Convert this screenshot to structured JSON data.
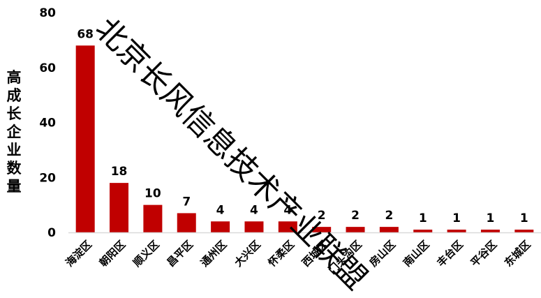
{
  "chart_data": {
    "type": "bar",
    "title": "",
    "xlabel": "",
    "ylabel": "高成长企业数量",
    "ylim": [
      0,
      80
    ],
    "yticks": [
      0,
      20,
      40,
      60,
      80
    ],
    "grid": false,
    "bar_color": "#c00000",
    "categories": [
      "海淀区",
      "朝阳区",
      "顺义区",
      "昌平区",
      "通州区",
      "大兴区",
      "怀柔区",
      "西城区",
      "门头沟区",
      "房山区",
      "南山区",
      "丰台区",
      "平谷区",
      "东城区"
    ],
    "values": [
      68,
      18,
      10,
      7,
      4,
      4,
      4,
      2,
      2,
      2,
      1,
      1,
      1,
      1
    ],
    "data_labels": [
      "68",
      "18",
      "10",
      "7",
      "4",
      "4",
      "4",
      "2",
      "2",
      "2",
      "1",
      "1",
      "1",
      "1"
    ]
  },
  "watermark": "北京长风信息技术产业联盟"
}
